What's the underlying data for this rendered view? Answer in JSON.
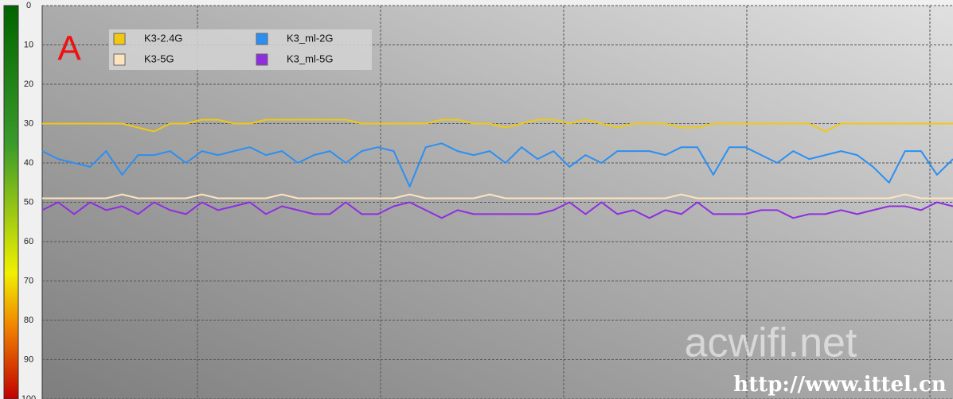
{
  "chart_data": {
    "type": "line",
    "annotations": [
      "A",
      "acwifi.net",
      "http://www.ittel.cn"
    ],
    "ylim": [
      100,
      0
    ],
    "yticks": [
      0,
      10,
      20,
      30,
      40,
      50,
      60,
      70,
      80,
      90,
      100
    ],
    "grid": true,
    "legend": "top-left",
    "series": [
      {
        "name": "K3-2.4G",
        "color": "#f2c811",
        "values": [
          30,
          30,
          30,
          30,
          30,
          30,
          31,
          32,
          30,
          30,
          29,
          29,
          30,
          30,
          29,
          29,
          29,
          29,
          29,
          29,
          30,
          30,
          30,
          30,
          30,
          29,
          29,
          30,
          30,
          31,
          30,
          29,
          29,
          30,
          29,
          30,
          31,
          30,
          30,
          30,
          31,
          31,
          30,
          30,
          30,
          30,
          30,
          30,
          30,
          32,
          30,
          30,
          30,
          30,
          30,
          30,
          30,
          30
        ]
      },
      {
        "name": "K3-5G",
        "color": "#fde4bf",
        "values": [
          49,
          49,
          49,
          49,
          49,
          48,
          49,
          49,
          49,
          49,
          48,
          49,
          49,
          49,
          49,
          48,
          49,
          49,
          49,
          49,
          49,
          49,
          49,
          48,
          49,
          49,
          49,
          49,
          48,
          49,
          49,
          49,
          49,
          49,
          49,
          49,
          49,
          49,
          49,
          49,
          48,
          49,
          49,
          49,
          49,
          49,
          49,
          49,
          49,
          49,
          49,
          49,
          49,
          49,
          48,
          49,
          49,
          49
        ]
      },
      {
        "name": "K3_ml-2G",
        "color": "#2b8ff2",
        "values": [
          37,
          39,
          40,
          41,
          37,
          43,
          38,
          38,
          37,
          40,
          37,
          38,
          37,
          36,
          38,
          37,
          40,
          38,
          37,
          40,
          37,
          36,
          37,
          46,
          36,
          35,
          37,
          38,
          37,
          40,
          36,
          39,
          37,
          41,
          38,
          40,
          37,
          37,
          37,
          38,
          36,
          36,
          43,
          36,
          36,
          38,
          40,
          37,
          39,
          38,
          37,
          38,
          41,
          45,
          37,
          37,
          43,
          39
        ]
      },
      {
        "name": "K3_ml-5G",
        "color": "#8e2ee0",
        "values": [
          52,
          50,
          53,
          50,
          52,
          51,
          53,
          50,
          52,
          53,
          50,
          52,
          51,
          50,
          53,
          51,
          52,
          53,
          53,
          50,
          53,
          53,
          51,
          50,
          52,
          54,
          52,
          53,
          53,
          53,
          53,
          53,
          52,
          50,
          53,
          50,
          53,
          52,
          54,
          52,
          53,
          50,
          53,
          53,
          53,
          52,
          52,
          54,
          53,
          53,
          52,
          53,
          52,
          51,
          51,
          52,
          50,
          51
        ]
      }
    ]
  }
}
